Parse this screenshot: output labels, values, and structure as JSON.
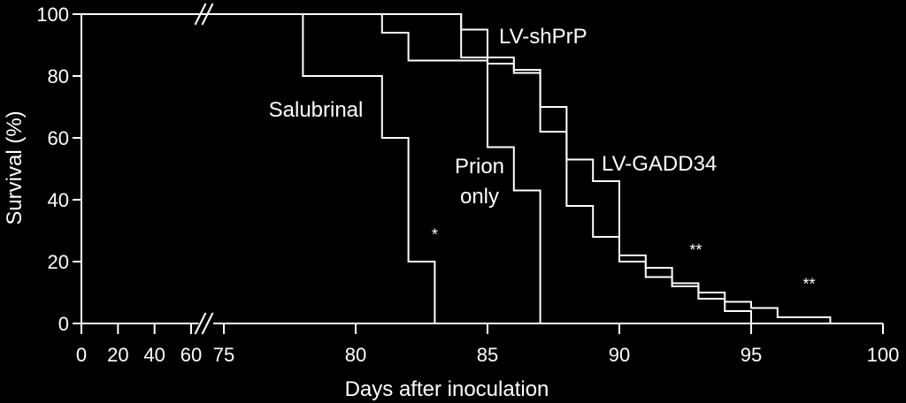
{
  "chart_data": {
    "type": "line",
    "step": true,
    "title": "",
    "xlabel": "Days after inoculation",
    "ylabel": "Survival (%)",
    "ylim": [
      0,
      100
    ],
    "xlim": [
      0,
      100
    ],
    "x_axis_break": "60-75",
    "x_ticks": [
      0,
      20,
      40,
      60,
      75,
      80,
      85,
      90,
      95,
      100
    ],
    "x_tick_labels": [
      "0",
      "20",
      "40",
      "60",
      "75",
      "80",
      "85",
      "90",
      "95",
      "100"
    ],
    "y_ticks": [
      0,
      20,
      40,
      60,
      80,
      100
    ],
    "y_tick_labels": [
      "0",
      "20",
      "40",
      "60",
      "80",
      "100"
    ],
    "grid": false,
    "line_color": "#ffffff",
    "background": "#000000",
    "series": [
      {
        "name": "Salubrinal",
        "label_lines": [
          "Salubrinal"
        ],
        "points": [
          [
            0,
            100
          ],
          [
            78,
            100
          ],
          [
            78,
            80
          ],
          [
            81,
            80
          ],
          [
            81,
            60
          ],
          [
            82,
            60
          ],
          [
            82,
            20
          ],
          [
            83,
            20
          ],
          [
            83,
            0
          ]
        ],
        "significance": "*"
      },
      {
        "name": "Prion only",
        "label_lines": [
          "Prion",
          "only"
        ],
        "points": [
          [
            0,
            100
          ],
          [
            84,
            100
          ],
          [
            84,
            86
          ],
          [
            85,
            86
          ],
          [
            85,
            57
          ],
          [
            86,
            57
          ],
          [
            86,
            43
          ],
          [
            87,
            43
          ],
          [
            87,
            0
          ]
        ],
        "significance": ""
      },
      {
        "name": "LV-shPrP",
        "label_lines": [
          "LV-shPrP"
        ],
        "points": [
          [
            0,
            100
          ],
          [
            81,
            100
          ],
          [
            81,
            94
          ],
          [
            82,
            94
          ],
          [
            82,
            85
          ],
          [
            85,
            85
          ],
          [
            85,
            84
          ],
          [
            86,
            84
          ],
          [
            86,
            81
          ],
          [
            87,
            81
          ],
          [
            87,
            62
          ],
          [
            88,
            62
          ],
          [
            88,
            38
          ],
          [
            89,
            38
          ],
          [
            89,
            28
          ],
          [
            90,
            28
          ],
          [
            90,
            20
          ],
          [
            91,
            20
          ],
          [
            91,
            15
          ],
          [
            92,
            15
          ],
          [
            92,
            12
          ],
          [
            93,
            12
          ],
          [
            93,
            8
          ],
          [
            94,
            8
          ],
          [
            94,
            4
          ],
          [
            95,
            4
          ],
          [
            95,
            0
          ],
          [
            96,
            0
          ]
        ],
        "significance": ""
      },
      {
        "name": "LV-GADD34",
        "label_lines": [
          "LV-GADD34"
        ],
        "points": [
          [
            0,
            100
          ],
          [
            84,
            100
          ],
          [
            84,
            95
          ],
          [
            85,
            95
          ],
          [
            85,
            86
          ],
          [
            86,
            86
          ],
          [
            86,
            82
          ],
          [
            87,
            82
          ],
          [
            87,
            70
          ],
          [
            88,
            70
          ],
          [
            88,
            53
          ],
          [
            89,
            53
          ],
          [
            89,
            46
          ],
          [
            90,
            46
          ],
          [
            90,
            22
          ],
          [
            91,
            22
          ],
          [
            91,
            18
          ],
          [
            92,
            18
          ],
          [
            92,
            13
          ],
          [
            93,
            13
          ],
          [
            93,
            10
          ],
          [
            94,
            10
          ],
          [
            94,
            7
          ],
          [
            95,
            7
          ],
          [
            95,
            5
          ],
          [
            96,
            5
          ],
          [
            96,
            2
          ],
          [
            98,
            2
          ],
          [
            98,
            0
          ]
        ],
        "significance": "**"
      }
    ],
    "significance_marks": [
      {
        "text": "*",
        "x": 83.0,
        "y": 27
      },
      {
        "text": "**",
        "x": 92.9,
        "y": 22
      },
      {
        "text": "**",
        "x": 97.2,
        "y": 11
      }
    ]
  }
}
